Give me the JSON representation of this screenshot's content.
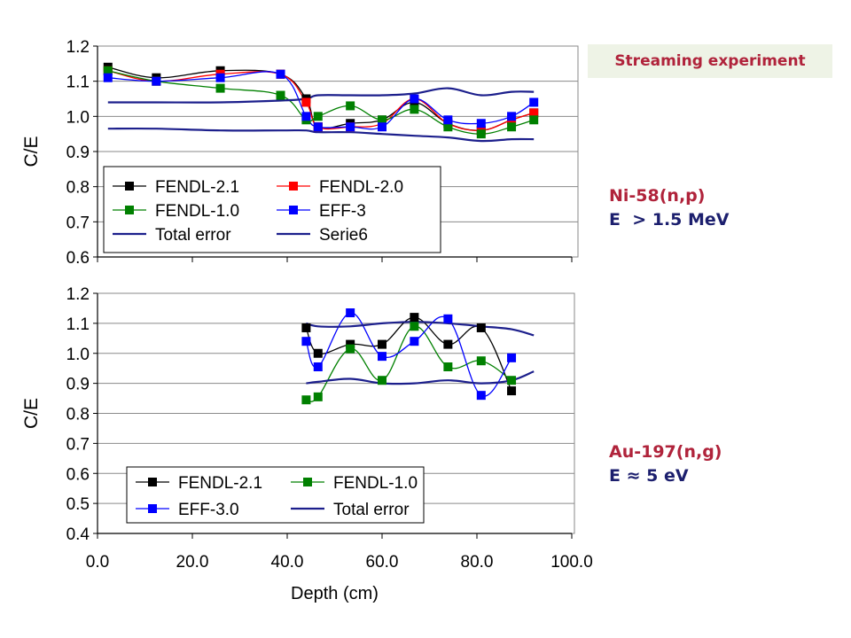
{
  "banner": {
    "text": "Streaming experiment"
  },
  "labels": {
    "top_reaction": "Ni-58(n,p)",
    "top_energy": "E  > 1.5 MeV",
    "bottom_reaction": "Au-197(n,g)",
    "bottom_energy": "E ≈ 5 eV"
  },
  "chart_data": [
    {
      "type": "line",
      "title": "",
      "xlabel": "",
      "ylabel": "C/E",
      "xlim": [
        0,
        100
      ],
      "ylim": [
        0.6,
        1.2
      ],
      "yticks": [
        "0.6",
        "0.7",
        "0.8",
        "0.9",
        "1.0",
        "1.1",
        "1.2"
      ],
      "grid": true,
      "legend": "lower-left",
      "series": [
        {
          "name": "FENDL-2.1",
          "color": "#000000",
          "marker": "square",
          "x": [
            2.2,
            12.4,
            25.9,
            38.6,
            44,
            46.5,
            53.3,
            60,
            66.8,
            73.9,
            80.9,
            87.3,
            92
          ],
          "y": [
            1.14,
            1.11,
            1.13,
            1.12,
            1.05,
            0.97,
            0.98,
            0.99,
            1.04,
            0.98,
            0.96,
            0.99,
            1.01
          ]
        },
        {
          "name": "FENDL-2.0",
          "color": "#ff0000",
          "marker": "square",
          "x": [
            2.2,
            12.4,
            25.9,
            38.6,
            44,
            46.5,
            53.3,
            60,
            66.8,
            73.9,
            80.9,
            87.3,
            92
          ],
          "y": [
            1.13,
            1.1,
            1.12,
            1.12,
            1.04,
            0.97,
            0.97,
            0.98,
            1.05,
            0.98,
            0.96,
            0.99,
            1.01
          ]
        },
        {
          "name": "FENDL-1.0",
          "color": "#008000",
          "marker": "square",
          "x": [
            2.2,
            12.4,
            25.9,
            38.6,
            44,
            46.5,
            53.3,
            60,
            66.8,
            73.9,
            80.9,
            87.3,
            92
          ],
          "y": [
            1.13,
            1.1,
            1.08,
            1.06,
            0.99,
            1.0,
            1.03,
            0.99,
            1.02,
            0.97,
            0.95,
            0.97,
            0.99
          ]
        },
        {
          "name": "EFF-3",
          "color": "#0000ff",
          "marker": "square",
          "x": [
            2.2,
            12.4,
            25.9,
            38.6,
            44,
            46.5,
            53.3,
            60,
            66.8,
            73.9,
            80.9,
            87.3,
            92
          ],
          "y": [
            1.11,
            1.1,
            1.11,
            1.12,
            1.0,
            0.97,
            0.97,
            0.97,
            1.05,
            0.99,
            0.98,
            1.0,
            1.04
          ]
        },
        {
          "name": "Total error",
          "color": "#1c1f8c",
          "marker": "none",
          "x": [
            2.2,
            12.4,
            25.9,
            38.6,
            44,
            46.5,
            53.3,
            60,
            66.8,
            73.9,
            80.9,
            87.3,
            92
          ],
          "y": [
            1.04,
            1.04,
            1.04,
            1.045,
            1.05,
            1.06,
            1.06,
            1.06,
            1.065,
            1.08,
            1.06,
            1.07,
            1.07
          ]
        },
        {
          "name": "Serie6",
          "color": "#1c1f8c",
          "marker": "none",
          "x": [
            2.2,
            12.4,
            25.9,
            38.6,
            44,
            46.5,
            53.3,
            60,
            66.8,
            73.9,
            80.9,
            87.3,
            92
          ],
          "y": [
            0.965,
            0.965,
            0.96,
            0.96,
            0.96,
            0.955,
            0.955,
            0.95,
            0.945,
            0.94,
            0.93,
            0.935,
            0.935
          ]
        }
      ]
    },
    {
      "type": "line",
      "title": "",
      "xlabel": "Depth (cm)",
      "ylabel": "C/E",
      "xlim": [
        0,
        100
      ],
      "ylim": [
        0.4,
        1.2
      ],
      "xticks": [
        "0.0",
        "20.0",
        "40.0",
        "60.0",
        "80.0",
        "100.0"
      ],
      "yticks": [
        "0.4",
        "0.5",
        "0.6",
        "0.7",
        "0.8",
        "0.9",
        "1.0",
        "1.1",
        "1.2"
      ],
      "grid": true,
      "legend": "bottom-center",
      "series": [
        {
          "name": "FENDL-2.1",
          "color": "#000000",
          "marker": "square",
          "x": [
            44,
            46.5,
            53.3,
            60,
            66.8,
            73.9,
            80.9,
            87.3
          ],
          "y": [
            1.085,
            1.0,
            1.03,
            1.03,
            1.12,
            1.03,
            1.085,
            0.875
          ]
        },
        {
          "name": "FENDL-1.0",
          "color": "#008000",
          "marker": "square",
          "x": [
            44,
            46.5,
            53.3,
            60,
            66.8,
            73.9,
            80.9,
            87.3
          ],
          "y": [
            0.845,
            0.855,
            1.015,
            0.91,
            1.09,
            0.955,
            0.975,
            0.91
          ]
        },
        {
          "name": "EFF-3.0",
          "color": "#0000ff",
          "marker": "square",
          "x": [
            44,
            46.5,
            53.3,
            60,
            66.8,
            73.9,
            80.9,
            87.3
          ],
          "y": [
            1.04,
            0.955,
            1.135,
            0.99,
            1.04,
            1.115,
            0.86,
            0.985
          ]
        },
        {
          "name": "Total error",
          "color": "#1c1f8c",
          "marker": "none",
          "x": [
            44,
            46.5,
            53.3,
            60,
            66.8,
            73.9,
            80.9,
            87.3,
            92
          ],
          "y": [
            1.1,
            1.09,
            1.09,
            1.1,
            1.105,
            1.1,
            1.09,
            1.08,
            1.06
          ]
        },
        {
          "name": "",
          "color": "#1c1f8c",
          "marker": "none",
          "x": [
            44,
            46.5,
            53.3,
            60,
            66.8,
            73.9,
            80.9,
            87.3,
            92
          ],
          "y": [
            0.9,
            0.905,
            0.915,
            0.9,
            0.9,
            0.91,
            0.9,
            0.91,
            0.94
          ]
        }
      ]
    }
  ]
}
